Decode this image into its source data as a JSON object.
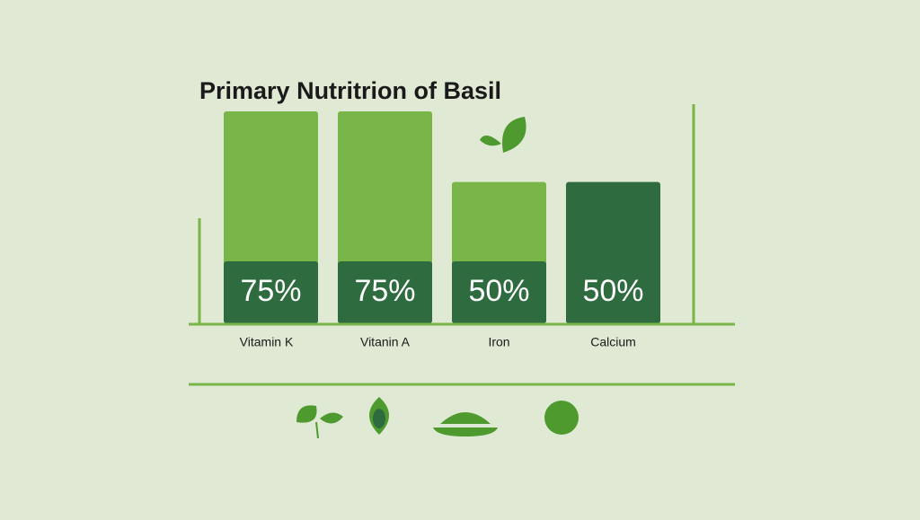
{
  "chart_data": {
    "type": "bar",
    "title": "Primary Nutritrion of Basil",
    "categories": [
      "Vitamin K",
      "Vitanin A",
      "Iron",
      "Calcium"
    ],
    "values": [
      75,
      75,
      50,
      50
    ],
    "value_labels": [
      "75%",
      "75%",
      "50%",
      "50%"
    ],
    "colors": [
      "#79b548",
      "#79b548",
      "#79b548",
      "#2e6b3f"
    ],
    "label_box_color": "#2e6b3f"
  }
}
